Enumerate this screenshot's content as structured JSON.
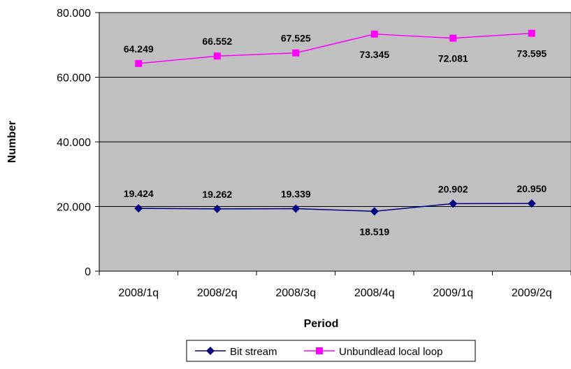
{
  "chart_data": {
    "type": "line",
    "title": "",
    "xlabel": "Period",
    "ylabel": "Number",
    "categories": [
      "2008/1q",
      "2008/2q",
      "2008/3q",
      "2008/4q",
      "2009/1q",
      "2009/2q"
    ],
    "ylim": [
      0,
      80000
    ],
    "y_ticks": [
      {
        "value": 0,
        "label": "0"
      },
      {
        "value": 20000,
        "label": "20.000"
      },
      {
        "value": 40000,
        "label": "40.000"
      },
      {
        "value": 60000,
        "label": "60.000"
      },
      {
        "value": 80000,
        "label": "80.000"
      }
    ],
    "grid": true,
    "legend_position": "bottom",
    "plot_background": "#c0c0c0",
    "series": [
      {
        "name": "Bit stream",
        "color": "#000080",
        "marker": "diamond",
        "values": [
          19424,
          19262,
          19339,
          18519,
          20902,
          20950
        ],
        "labels": [
          "19.424",
          "19.262",
          "19.339",
          "18.519",
          "20.902",
          "20.950"
        ]
      },
      {
        "name": "Unbundlead local loop",
        "color": "#ff00ff",
        "marker": "square",
        "values": [
          64249,
          66552,
          67525,
          73345,
          72081,
          73595
        ],
        "labels": [
          "64.249",
          "66.552",
          "67.525",
          "73.345",
          "72.081",
          "73.595"
        ]
      }
    ]
  }
}
